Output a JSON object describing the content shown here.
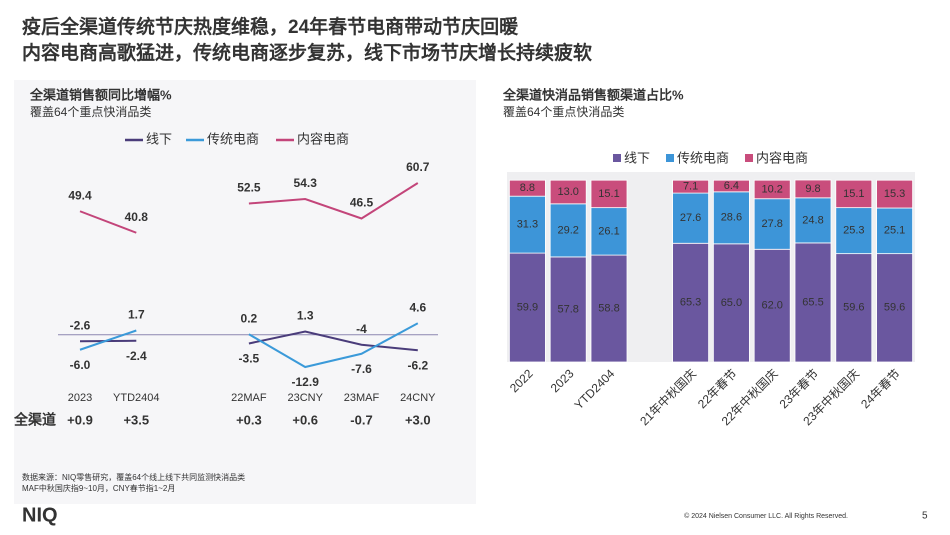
{
  "header": {
    "title_lines": [
      "疫后全渠道传统节庆热度维稳，24年春节电商带动节庆回暖",
      "内容电商高歌猛进，传统电商逐步复苏，线下市场节庆增长持续疲软"
    ]
  },
  "chart_data": [
    {
      "type": "line",
      "title": "全渠道销售额同比增幅%",
      "subtitle": "覆盖64个重点快消品类",
      "legend": "top",
      "categories": [
        "2023",
        "YTD2404",
        null,
        "22MAF",
        "23CNY",
        "23MAF",
        "24CNY"
      ],
      "series": [
        {
          "name": "线下",
          "color": "#4a3c7a",
          "values": [
            -2.6,
            -2.4,
            null,
            -3.5,
            1.3,
            -4.0,
            -6.2
          ]
        },
        {
          "name": "传统电商",
          "color": "#3b9ad9",
          "values": [
            -6.0,
            1.7,
            null,
            0.2,
            -12.9,
            -7.6,
            4.6
          ],
          "value_labels": [
            "-6.0",
            "1.7",
            null,
            "0.2",
            "-12.9",
            "-7.6",
            "4.6"
          ]
        },
        {
          "name": "内容电商",
          "color": "#c3457a",
          "values": [
            49.4,
            40.8,
            null,
            52.5,
            54.3,
            46.5,
            60.7
          ]
        }
      ]
    },
    {
      "type": "bar",
      "stacked": true,
      "title": "全渠道快消品销售额渠道占比%",
      "subtitle": "覆盖64个重点快消品类",
      "legend": "top",
      "categories": [
        "2022",
        "2023",
        "YTD2404",
        null,
        "21年中秋国庆",
        "22年春节",
        "22年中秋国庆",
        "23年春节",
        "23年中秋国庆",
        "24年春节"
      ],
      "series": [
        {
          "name": "线下",
          "color": "#6a579f",
          "values": [
            59.9,
            57.8,
            58.8,
            null,
            65.3,
            65.0,
            62.0,
            65.5,
            59.6,
            59.6
          ],
          "value_labels": [
            "59.9",
            "57.8",
            "58.8",
            null,
            "65.3",
            "65.0",
            "62.0",
            "65.5",
            "59.6",
            "59.6"
          ]
        },
        {
          "name": "传统电商",
          "color": "#3d95d8",
          "values": [
            31.3,
            29.2,
            26.1,
            null,
            27.6,
            28.6,
            27.8,
            24.8,
            25.3,
            25.1
          ],
          "value_labels": [
            "31.3",
            "29.2",
            "26.1",
            null,
            "27.6",
            "28.6",
            "27.8",
            "24.8",
            "25.3",
            "25.1"
          ]
        },
        {
          "name": "内容电商",
          "color": "#c94d7c",
          "values": [
            8.8,
            13.0,
            15.1,
            null,
            7.1,
            6.4,
            10.2,
            9.8,
            15.1,
            15.3
          ],
          "value_labels": [
            "8.8",
            "13.0",
            "15.1",
            null,
            "7.1",
            "6.4",
            "10.2",
            "9.8",
            "15.1",
            "15.3"
          ]
        }
      ]
    }
  ],
  "total_row": {
    "label": "全渠道",
    "cells": [
      "+0.9",
      "+3.5",
      null,
      "+0.3",
      "+0.6",
      "-0.7",
      "+3.0"
    ]
  },
  "footer": {
    "notes": [
      "数据来源：NIQ零售研究，覆盖64个线上线下共同监测快消品类",
      "MAF中秋国庆指9~10月，CNY春节指1~2月"
    ],
    "logo": "NIQ",
    "copyright": "© 2024 Nielsen Consumer LLC. All Rights Reserved.",
    "page": 5
  }
}
